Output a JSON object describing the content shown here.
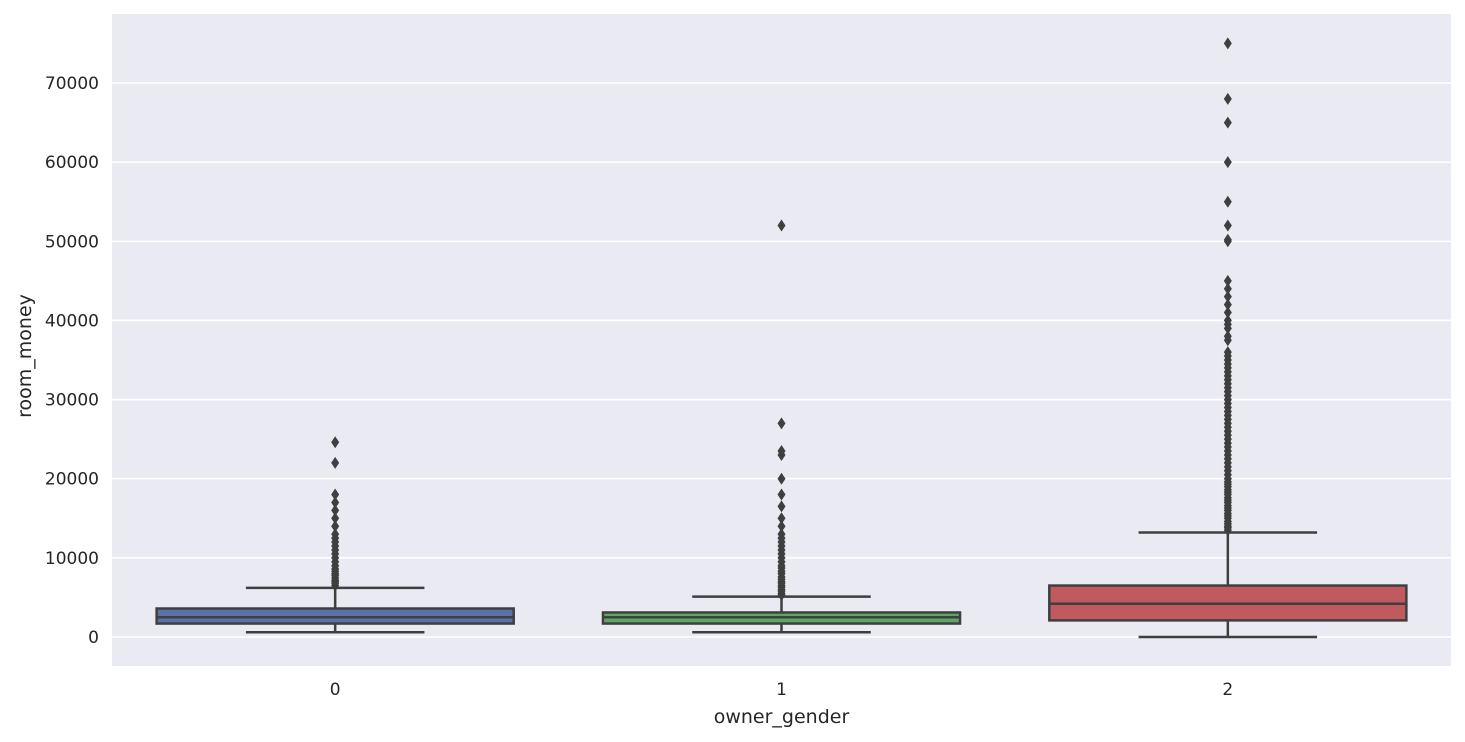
{
  "chart_data": {
    "type": "box",
    "title": "",
    "xlabel": "owner_gender",
    "ylabel": "room_money",
    "categories": [
      "0",
      "1",
      "2"
    ],
    "ylim": [
      -3700,
      79000
    ],
    "yticks": [
      0,
      10000,
      20000,
      30000,
      40000,
      50000,
      60000,
      70000
    ],
    "grid": true,
    "legend": "none",
    "series": [
      {
        "category": "0",
        "color": "#5a72a8",
        "whisker_low": 600,
        "q1": 1700,
        "median": 2500,
        "q3": 3600,
        "whisker_high": 6200,
        "outliers": [
          6500,
          6800,
          7000,
          7200,
          7500,
          7800,
          8000,
          8300,
          8600,
          9000,
          9500,
          10000,
          10500,
          11000,
          11500,
          12000,
          12500,
          13000,
          14000,
          15000,
          16000,
          17000,
          18000,
          22000,
          24600
        ]
      },
      {
        "category": "1",
        "color": "#5ea667",
        "whisker_low": 600,
        "q1": 1700,
        "median": 2500,
        "q3": 3100,
        "whisker_high": 5100,
        "outliers": [
          5300,
          5500,
          5800,
          6000,
          6300,
          6500,
          6800,
          7000,
          7300,
          7600,
          8000,
          8300,
          8700,
          9000,
          9500,
          10000,
          10500,
          11000,
          11500,
          12000,
          12500,
          13000,
          14000,
          15000,
          16500,
          18000,
          20000,
          23000,
          23500,
          27000,
          52000
        ]
      },
      {
        "category": "2",
        "color": "#c05a5f",
        "whisker_low": 0,
        "q1": 2100,
        "median": 4200,
        "q3": 6500,
        "whisker_high": 13200,
        "outliers": [
          13500,
          13800,
          14000,
          14300,
          14600,
          15000,
          15300,
          15600,
          16000,
          16300,
          16600,
          17000,
          17300,
          17600,
          18000,
          18300,
          18600,
          19000,
          19300,
          19600,
          20000,
          20500,
          21000,
          21500,
          22000,
          22500,
          23000,
          23500,
          24000,
          24500,
          25000,
          25500,
          26000,
          26500,
          27000,
          27500,
          28000,
          28500,
          29000,
          29500,
          30000,
          30500,
          31000,
          31500,
          32000,
          32500,
          33000,
          33500,
          34000,
          34500,
          35000,
          35500,
          36000,
          37500,
          38000,
          39000,
          39500,
          40000,
          41000,
          42000,
          43000,
          44000,
          45000,
          50000,
          50200,
          52000,
          55000,
          60000,
          65000,
          68000,
          75000
        ]
      }
    ]
  }
}
